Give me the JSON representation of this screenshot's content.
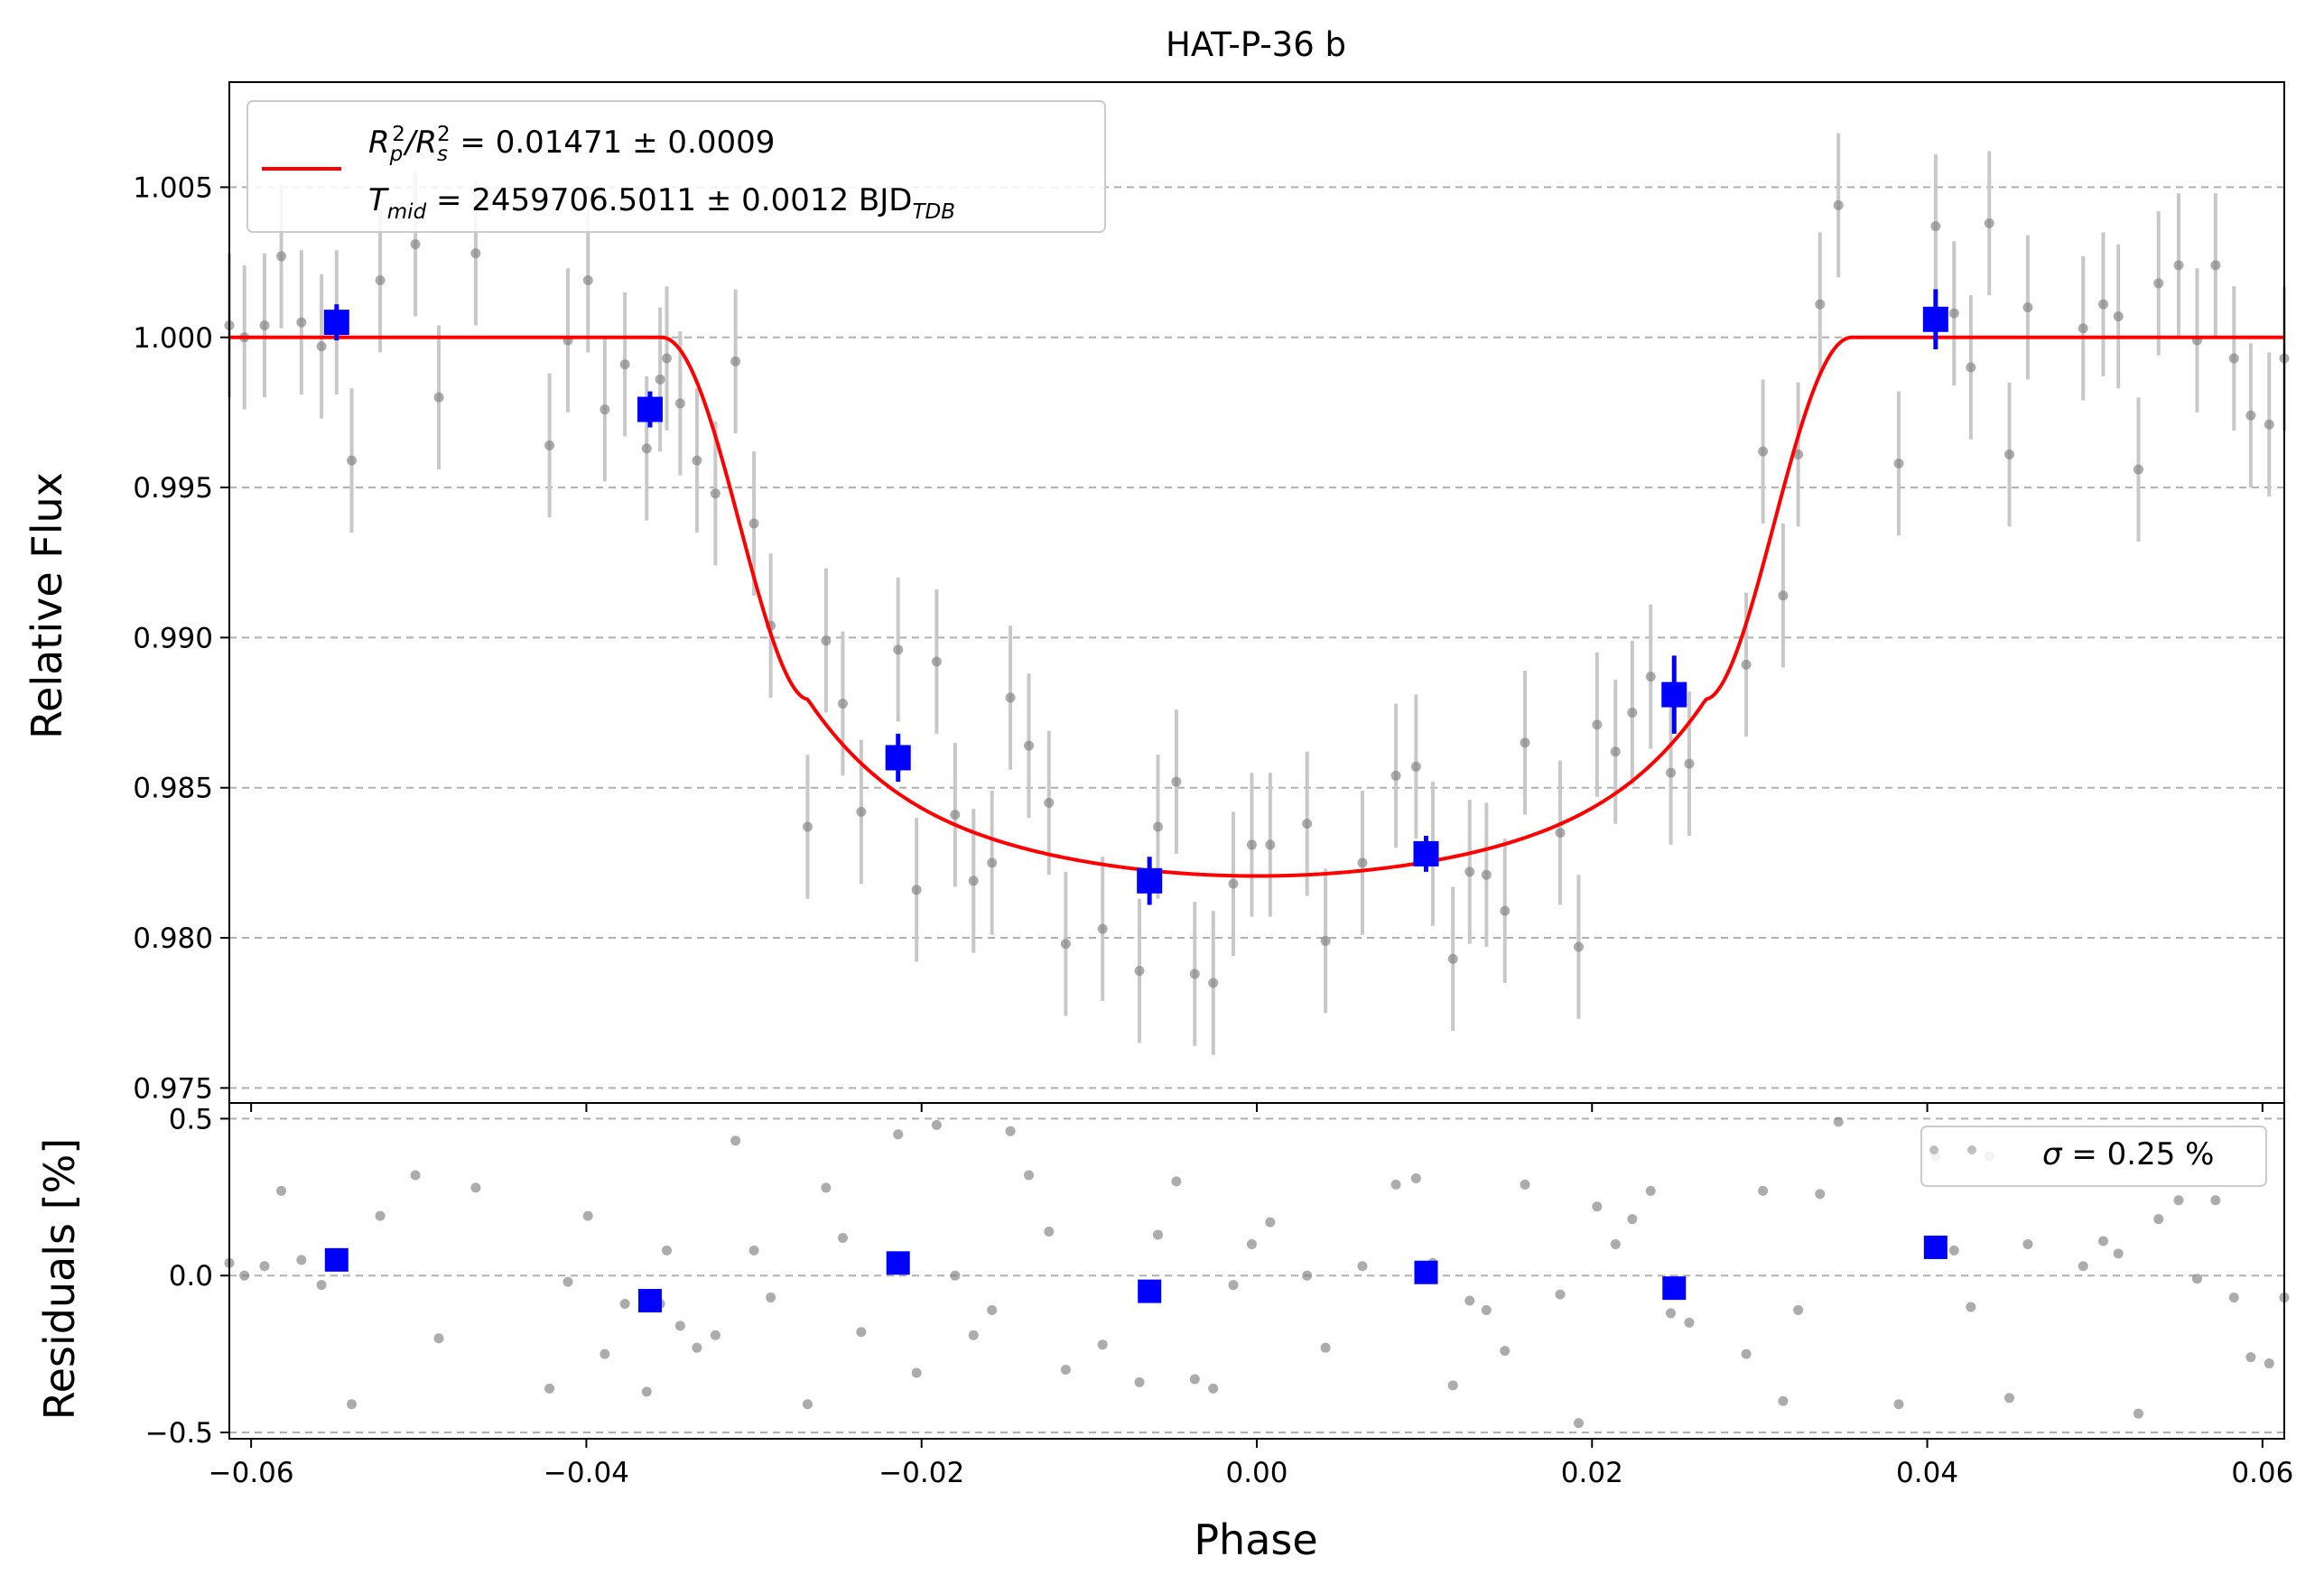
{
  "chart_data": [
    {
      "type": "scatter",
      "title": "HAT-P-36 b",
      "xlabel": "",
      "ylabel": "Relative Flux",
      "xlim": [
        -0.0613,
        0.0613
      ],
      "ylim": [
        0.9745,
        1.0085
      ],
      "x_ticks": [
        "−0.06",
        "−0.04",
        "−0.02",
        "0.00",
        "0.02",
        "0.04",
        "0.06"
      ],
      "y_ticks": [
        "0.975",
        "0.980",
        "0.985",
        "0.990",
        "0.995",
        "1.000",
        "1.005"
      ],
      "y_tick_values": [
        0.975,
        0.98,
        0.985,
        0.99,
        0.995,
        1.0,
        1.005
      ],
      "grid": "horizontal dashed",
      "legend": {
        "placement": "upper-left",
        "line1_a": "R",
        "line1_b": "p",
        "line1_c": "2",
        "line1_d": "/R",
        "line1_e": "s",
        "line1_f": "2",
        "line1_value": " = 0.01471 ± 0.0009",
        "line2_a": "T",
        "line2_b": "mid",
        "line2_value": " = 2459706.5011 ± 0.0012 BJD",
        "line2_sub": "TDB"
      },
      "colors": {
        "data": "#808080",
        "errorbar": "#c8c8c8",
        "binned": "#0000ff",
        "model": "#ff0000"
      },
      "transit_model": {
        "depth": 0.01471,
        "t1": 0.0355,
        "t2": 0.0268,
        "limb_darkening_floor": 0.98206
      },
      "series": [
        {
          "name": "",
          "kind": "data",
          "x": [
            -0.0613,
            -0.0604,
            -0.0592,
            -0.0582,
            -0.057,
            -0.0558,
            -0.0549,
            -0.054,
            -0.0523,
            -0.0502,
            -0.0488,
            -0.0466,
            -0.0422,
            -0.0411,
            -0.0399,
            -0.0389,
            -0.0377,
            -0.0364,
            -0.0356,
            -0.0352,
            -0.0344,
            -0.0334,
            -0.0323,
            -0.0311,
            -0.03,
            -0.029,
            -0.0268,
            -0.0257,
            -0.0247,
            -0.0236,
            -0.0214,
            -0.0203,
            -0.0191,
            -0.018,
            -0.0169,
            -0.0158,
            -0.0147,
            -0.0136,
            -0.0124,
            -0.0114,
            -0.0092,
            -0.007,
            -0.0059,
            -0.0048,
            -0.0037,
            -0.0026,
            -0.0014,
            -0.0003,
            0.0008,
            0.003,
            0.0041,
            0.0063,
            0.0083,
            0.0095,
            0.0105,
            0.0117,
            0.0127,
            0.0137,
            0.0148,
            0.016,
            0.0181,
            0.0192,
            0.0203,
            0.0214,
            0.0224,
            0.0235,
            0.0247,
            0.0258,
            0.0292,
            0.0302,
            0.0314,
            0.0323,
            0.0336,
            0.0347,
            0.0383,
            0.0405,
            0.0416,
            0.0426,
            0.0437,
            0.0449,
            0.046,
            0.0493,
            0.0505,
            0.0514,
            0.0526,
            0.0538,
            0.055,
            0.0561,
            0.0572,
            0.0583,
            0.0593,
            0.0604,
            0.0613
          ],
          "y": [
            1.0004,
            1.0,
            1.0004,
            1.0027,
            1.0005,
            0.9997,
            1.0005,
            0.9959,
            1.0019,
            1.0031,
            0.998,
            1.0028,
            0.9964,
            0.9999,
            1.0019,
            0.9976,
            0.9991,
            0.9963,
            0.9986,
            0.9993,
            0.9978,
            0.9959,
            0.9948,
            0.9992,
            0.9938,
            0.9904,
            0.9837,
            0.9899,
            0.9878,
            0.9842,
            0.9896,
            0.9816,
            0.9892,
            0.9841,
            0.9819,
            0.9825,
            0.988,
            0.9864,
            0.9845,
            0.9798,
            0.9803,
            0.9789,
            0.9837,
            0.9852,
            0.9788,
            0.9785,
            0.9818,
            0.9831,
            0.9831,
            0.9838,
            0.9799,
            0.9825,
            0.9854,
            0.9857,
            0.9828,
            0.9793,
            0.9822,
            0.9821,
            0.9809,
            0.9865,
            0.9835,
            0.9797,
            0.9871,
            0.9862,
            0.9875,
            0.9887,
            0.9855,
            0.9858,
            0.9891,
            0.9962,
            0.9914,
            0.9961,
            1.0011,
            1.0044,
            0.9958,
            1.0037,
            1.0008,
            0.999,
            1.0038,
            0.9961,
            1.001,
            1.0003,
            1.0011,
            1.0007,
            0.9956,
            1.0018,
            1.0024,
            0.9999,
            1.0024,
            0.9993,
            0.9974,
            0.9971,
            0.9993
          ],
          "yerr": 0.0024
        },
        {
          "name": "",
          "kind": "binned",
          "x": [
            -0.0549,
            -0.0362,
            -0.0214,
            -0.0064,
            0.0101,
            0.0249,
            0.0405
          ],
          "y": [
            1.0005,
            0.9976,
            0.986,
            0.9819,
            0.9828,
            0.9881,
            1.0006
          ],
          "yerr": [
            0.0006,
            0.0006,
            0.0008,
            0.0008,
            0.0006,
            0.0013,
            0.001
          ]
        }
      ]
    },
    {
      "type": "scatter",
      "title": "",
      "xlabel": "Phase",
      "ylabel": "Residuals [%]",
      "xlim": [
        -0.0613,
        0.0613
      ],
      "ylim": [
        -0.52,
        0.55
      ],
      "x_ticks": [
        "−0.06",
        "−0.04",
        "−0.02",
        "0.00",
        "0.02",
        "0.04",
        "0.06"
      ],
      "x_tick_values": [
        -0.06,
        -0.04,
        -0.02,
        0.0,
        0.02,
        0.04,
        0.06
      ],
      "y_ticks": [
        "−0.5",
        "0.0",
        "0.5"
      ],
      "y_tick_values": [
        -0.5,
        0.0,
        0.5
      ],
      "grid": "horizontal dashed",
      "legend": {
        "placement": "upper-right",
        "sigma_symbol": "σ",
        "text": " = 0.25 %"
      },
      "series": [
        {
          "name": "",
          "kind": "residuals",
          "x": [
            -0.0613,
            -0.0604,
            -0.0592,
            -0.0582,
            -0.057,
            -0.0558,
            -0.0549,
            -0.054,
            -0.0523,
            -0.0502,
            -0.0488,
            -0.0466,
            -0.0422,
            -0.0411,
            -0.0399,
            -0.0389,
            -0.0377,
            -0.0364,
            -0.0356,
            -0.0352,
            -0.0344,
            -0.0334,
            -0.0323,
            -0.0311,
            -0.03,
            -0.029,
            -0.0268,
            -0.0257,
            -0.0247,
            -0.0236,
            -0.0214,
            -0.0203,
            -0.0191,
            -0.018,
            -0.0169,
            -0.0158,
            -0.0147,
            -0.0136,
            -0.0124,
            -0.0114,
            -0.0092,
            -0.007,
            -0.0059,
            -0.0048,
            -0.0037,
            -0.0026,
            -0.0014,
            -0.0003,
            0.0008,
            0.003,
            0.0041,
            0.0063,
            0.0083,
            0.0095,
            0.0105,
            0.0117,
            0.0127,
            0.0137,
            0.0148,
            0.016,
            0.0181,
            0.0192,
            0.0203,
            0.0214,
            0.0224,
            0.0235,
            0.0247,
            0.0258,
            0.0292,
            0.0302,
            0.0314,
            0.0323,
            0.0336,
            0.0347,
            0.0383,
            0.0405,
            0.0416,
            0.0426,
            0.0437,
            0.0449,
            0.046,
            0.0493,
            0.0505,
            0.0514,
            0.0526,
            0.0538,
            0.055,
            0.0561,
            0.0572,
            0.0583,
            0.0593,
            0.0604,
            0.0613
          ],
          "y": [
            0.04,
            0.0,
            0.03,
            0.27,
            0.05,
            -0.03,
            0.05,
            -0.41,
            0.19,
            0.32,
            -0.2,
            0.28,
            -0.36,
            -0.02,
            0.19,
            -0.25,
            -0.09,
            -0.37,
            -0.09,
            0.08,
            -0.16,
            -0.23,
            -0.19,
            0.43,
            0.08,
            -0.07,
            -0.41,
            0.28,
            0.12,
            -0.18,
            0.45,
            -0.31,
            0.48,
            0.0,
            -0.19,
            -0.11,
            0.46,
            0.32,
            0.14,
            -0.3,
            -0.22,
            -0.34,
            0.13,
            0.3,
            -0.33,
            -0.36,
            -0.03,
            0.1,
            0.17,
            0.0,
            -0.23,
            0.03,
            0.29,
            0.31,
            0.04,
            -0.35,
            -0.08,
            -0.11,
            -0.24,
            0.29,
            -0.06,
            -0.47,
            0.22,
            0.1,
            0.18,
            0.27,
            -0.12,
            -0.15,
            -0.25,
            0.27,
            -0.4,
            -0.11,
            0.26,
            0.49,
            -0.41,
            0.38,
            0.08,
            -0.1,
            0.38,
            -0.39,
            0.1,
            0.03,
            0.11,
            0.07,
            -0.44,
            0.18,
            0.24,
            -0.01,
            0.24,
            -0.07,
            -0.26,
            -0.28,
            -0.07
          ]
        },
        {
          "name": "",
          "kind": "binned",
          "x": [
            -0.0549,
            -0.0362,
            -0.0214,
            -0.0064,
            0.0101,
            0.0249,
            0.0405
          ],
          "y": [
            0.05,
            -0.08,
            0.04,
            -0.05,
            0.01,
            -0.04,
            0.09
          ]
        }
      ]
    }
  ]
}
